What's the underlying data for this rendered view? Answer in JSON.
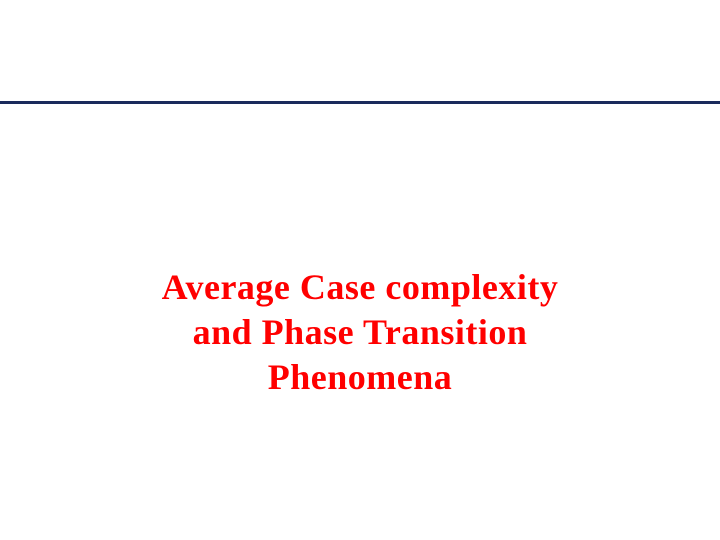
{
  "slide": {
    "title_line1": "Average Case complexity",
    "title_line2": "and Phase Transition",
    "title_line3": "Phenomena",
    "title_color": "#ff0000",
    "divider_color": "#1a2a5c",
    "background_color": "#ffffff",
    "title_fontsize": 36,
    "title_fontweight": "bold",
    "font_family": "Times New Roman"
  }
}
